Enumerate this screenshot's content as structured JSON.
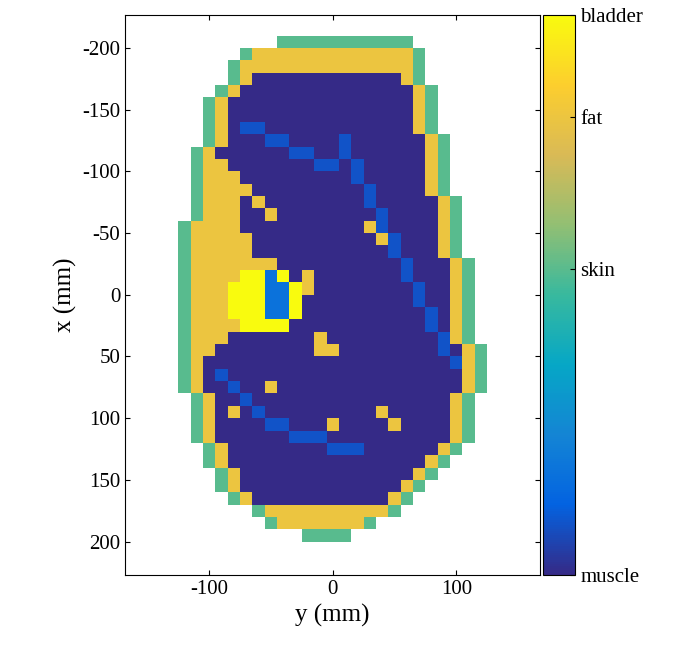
{
  "chart_data": {
    "type": "heatmap",
    "xlabel": "y (mm)",
    "ylabel": "x (mm)",
    "xlim": [
      -168,
      168
    ],
    "ylim": [
      227,
      -227
    ],
    "xticks": [
      -100,
      0,
      100
    ],
    "yticks": [
      -200,
      -150,
      -100,
      -50,
      0,
      50,
      100,
      150,
      200
    ],
    "y_edges": [
      -125,
      -115,
      -105,
      -95,
      -85,
      -75,
      -65,
      -55,
      -45,
      -35,
      -25,
      -15,
      -5,
      5,
      15,
      25,
      35,
      45,
      55,
      65,
      75,
      85,
      95,
      105,
      115,
      125
    ],
    "x_edges": [
      -210,
      -200,
      -190,
      -180,
      -170,
      -160,
      -150,
      -140,
      -130,
      -120,
      -110,
      -100,
      -90,
      -80,
      -70,
      -60,
      -50,
      -40,
      -30,
      -20,
      -10,
      0,
      10,
      20,
      30,
      40,
      50,
      60,
      70,
      80,
      90,
      100,
      110,
      120,
      130,
      140,
      150,
      160,
      170,
      180,
      190,
      200
    ],
    "color_range": [
      0,
      11
    ],
    "color_ticks": [
      {
        "value": 0,
        "label": "muscle"
      },
      {
        "value": 6,
        "label": "skin"
      },
      {
        "value": 9,
        "label": "fat"
      },
      {
        "value": 11,
        "label": "bladder"
      }
    ],
    "cells": [
      [
        null,
        null,
        null,
        null,
        null,
        null,
        null,
        null,
        6,
        6,
        6,
        6,
        6,
        6,
        6,
        6,
        6,
        6,
        6,
        null,
        null,
        null,
        null,
        null,
        null
      ],
      [
        null,
        null,
        null,
        null,
        null,
        6,
        9,
        9,
        9,
        9,
        9,
        9,
        9,
        9,
        9,
        9,
        9,
        9,
        9,
        6,
        null,
        null,
        null,
        null,
        null
      ],
      [
        null,
        null,
        null,
        null,
        6,
        9,
        9,
        9,
        9,
        9,
        9,
        9,
        9,
        9,
        9,
        9,
        9,
        9,
        9,
        6,
        null,
        null,
        null,
        null,
        null
      ],
      [
        null,
        null,
        null,
        null,
        6,
        9,
        0,
        0,
        0,
        0,
        0,
        0,
        0,
        0,
        0,
        0,
        0,
        0,
        9,
        6,
        null,
        null,
        null,
        null,
        null
      ],
      [
        null,
        null,
        null,
        6,
        9,
        0,
        0,
        0,
        0,
        0,
        0,
        0,
        0,
        0,
        0,
        0,
        0,
        0,
        0,
        9,
        6,
        null,
        null,
        null,
        null
      ],
      [
        null,
        null,
        6,
        9,
        0,
        0,
        0,
        0,
        0,
        0,
        0,
        0,
        0,
        0,
        0,
        0,
        0,
        0,
        0,
        9,
        6,
        null,
        null,
        null,
        null
      ],
      [
        null,
        null,
        6,
        9,
        0,
        0,
        0,
        0,
        0,
        0,
        0,
        0,
        0,
        0,
        0,
        0,
        0,
        0,
        0,
        9,
        6,
        null,
        null,
        null,
        null
      ],
      [
        null,
        null,
        6,
        9,
        0,
        1,
        1,
        0,
        0,
        0,
        0,
        0,
        0,
        0,
        0,
        0,
        0,
        0,
        0,
        9,
        6,
        null,
        null,
        null,
        null
      ],
      [
        null,
        null,
        6,
        9,
        0,
        0,
        0,
        1,
        1,
        0,
        0,
        0,
        0,
        1,
        0,
        0,
        0,
        0,
        0,
        0,
        9,
        6,
        null,
        null,
        null
      ],
      [
        null,
        6,
        9,
        0,
        0,
        0,
        0,
        0,
        0,
        1,
        1,
        0,
        0,
        1,
        0,
        0,
        0,
        0,
        0,
        0,
        9,
        6,
        null,
        null,
        null
      ],
      [
        null,
        6,
        9,
        9,
        0,
        0,
        0,
        0,
        0,
        0,
        0,
        1,
        1,
        0,
        1,
        0,
        0,
        0,
        0,
        0,
        9,
        6,
        null,
        null,
        null
      ],
      [
        null,
        6,
        9,
        9,
        9,
        0,
        0,
        0,
        0,
        0,
        0,
        0,
        0,
        0,
        1,
        0,
        0,
        0,
        0,
        0,
        9,
        6,
        null,
        null,
        null
      ],
      [
        null,
        6,
        9,
        9,
        9,
        9,
        0,
        0,
        0,
        0,
        0,
        0,
        0,
        0,
        0,
        1,
        0,
        0,
        0,
        0,
        9,
        6,
        null,
        null,
        null
      ],
      [
        null,
        6,
        9,
        9,
        9,
        0,
        9,
        0,
        0,
        0,
        0,
        0,
        0,
        0,
        0,
        1,
        0,
        0,
        0,
        0,
        0,
        9,
        6,
        null,
        null
      ],
      [
        null,
        6,
        9,
        9,
        9,
        0,
        0,
        9,
        0,
        0,
        0,
        0,
        0,
        0,
        0,
        0,
        1,
        0,
        0,
        0,
        0,
        9,
        6,
        null,
        null
      ],
      [
        6,
        9,
        9,
        9,
        9,
        0,
        0,
        0,
        0,
        0,
        0,
        0,
        0,
        0,
        0,
        9,
        1,
        0,
        0,
        0,
        0,
        9,
        6,
        null,
        null
      ],
      [
        6,
        9,
        9,
        9,
        9,
        9,
        0,
        0,
        0,
        0,
        0,
        0,
        0,
        0,
        0,
        0,
        9,
        1,
        0,
        0,
        0,
        9,
        6,
        null,
        null
      ],
      [
        6,
        9,
        9,
        9,
        9,
        9,
        0,
        0,
        0,
        0,
        0,
        0,
        0,
        0,
        0,
        0,
        0,
        1,
        0,
        0,
        0,
        9,
        6,
        null,
        null
      ],
      [
        6,
        9,
        9,
        9,
        9,
        9,
        9,
        9,
        0,
        0,
        0,
        0,
        0,
        0,
        0,
        0,
        0,
        0,
        1,
        0,
        0,
        0,
        9,
        6,
        null
      ],
      [
        6,
        9,
        9,
        9,
        9,
        11,
        11,
        2,
        11,
        0,
        9,
        0,
        0,
        0,
        0,
        0,
        0,
        0,
        1,
        0,
        0,
        0,
        9,
        6,
        null
      ],
      [
        6,
        9,
        9,
        9,
        11,
        11,
        11,
        2,
        2,
        11,
        9,
        0,
        0,
        0,
        0,
        0,
        0,
        0,
        0,
        1,
        0,
        0,
        9,
        6,
        null
      ],
      [
        6,
        9,
        9,
        9,
        11,
        11,
        11,
        2,
        2,
        11,
        0,
        0,
        0,
        0,
        0,
        0,
        0,
        0,
        0,
        1,
        0,
        0,
        9,
        6,
        null
      ],
      [
        6,
        9,
        9,
        9,
        11,
        11,
        11,
        2,
        2,
        11,
        0,
        0,
        0,
        0,
        0,
        0,
        0,
        0,
        0,
        0,
        1,
        0,
        9,
        6,
        null
      ],
      [
        6,
        9,
        9,
        9,
        9,
        11,
        11,
        11,
        11,
        0,
        0,
        0,
        0,
        0,
        0,
        0,
        0,
        0,
        0,
        0,
        1,
        0,
        9,
        6,
        null
      ],
      [
        6,
        9,
        9,
        9,
        0,
        0,
        0,
        0,
        0,
        0,
        0,
        9,
        0,
        0,
        0,
        0,
        0,
        0,
        0,
        0,
        0,
        1,
        9,
        6,
        null
      ],
      [
        6,
        9,
        9,
        0,
        0,
        0,
        0,
        0,
        0,
        0,
        0,
        9,
        9,
        0,
        0,
        0,
        0,
        0,
        0,
        0,
        0,
        1,
        0,
        9,
        6
      ],
      [
        6,
        9,
        0,
        0,
        0,
        0,
        0,
        0,
        0,
        0,
        0,
        0,
        0,
        0,
        0,
        0,
        0,
        0,
        0,
        0,
        0,
        0,
        1,
        9,
        6
      ],
      [
        6,
        9,
        0,
        1,
        0,
        0,
        0,
        0,
        0,
        0,
        0,
        0,
        0,
        0,
        0,
        0,
        0,
        0,
        0,
        0,
        0,
        0,
        0,
        9,
        6
      ],
      [
        6,
        9,
        0,
        0,
        1,
        0,
        0,
        9,
        0,
        0,
        0,
        0,
        0,
        0,
        0,
        0,
        0,
        0,
        0,
        0,
        0,
        0,
        0,
        9,
        6
      ],
      [
        null,
        6,
        9,
        0,
        0,
        1,
        0,
        0,
        0,
        0,
        0,
        0,
        0,
        0,
        0,
        0,
        0,
        0,
        0,
        0,
        0,
        0,
        9,
        6,
        null
      ],
      [
        null,
        6,
        9,
        0,
        9,
        0,
        1,
        0,
        0,
        0,
        0,
        0,
        0,
        0,
        0,
        0,
        9,
        0,
        0,
        0,
        0,
        0,
        9,
        6,
        null
      ],
      [
        null,
        6,
        9,
        0,
        0,
        0,
        0,
        1,
        1,
        0,
        0,
        0,
        9,
        0,
        0,
        0,
        0,
        9,
        0,
        0,
        0,
        0,
        9,
        6,
        null
      ],
      [
        null,
        6,
        9,
        0,
        0,
        0,
        0,
        0,
        0,
        1,
        1,
        1,
        0,
        0,
        0,
        0,
        0,
        0,
        0,
        0,
        0,
        0,
        9,
        6,
        null
      ],
      [
        null,
        null,
        6,
        9,
        0,
        0,
        0,
        0,
        0,
        0,
        0,
        0,
        1,
        1,
        1,
        0,
        0,
        0,
        0,
        0,
        0,
        9,
        6,
        null,
        null
      ],
      [
        null,
        null,
        6,
        9,
        0,
        0,
        0,
        0,
        0,
        0,
        0,
        0,
        0,
        0,
        0,
        0,
        0,
        0,
        0,
        0,
        9,
        6,
        null,
        null,
        null
      ],
      [
        null,
        null,
        null,
        6,
        9,
        0,
        0,
        0,
        0,
        0,
        0,
        0,
        0,
        0,
        0,
        0,
        0,
        0,
        0,
        9,
        6,
        null,
        null,
        null,
        null
      ],
      [
        null,
        null,
        null,
        6,
        9,
        0,
        0,
        0,
        0,
        0,
        0,
        0,
        0,
        0,
        0,
        0,
        0,
        0,
        9,
        6,
        null,
        null,
        null,
        null,
        null
      ],
      [
        null,
        null,
        null,
        null,
        6,
        9,
        0,
        0,
        0,
        0,
        0,
        0,
        0,
        0,
        0,
        0,
        0,
        9,
        6,
        null,
        null,
        null,
        null,
        null,
        null
      ],
      [
        null,
        null,
        null,
        null,
        null,
        null,
        6,
        9,
        9,
        9,
        9,
        9,
        9,
        9,
        9,
        9,
        9,
        6,
        null,
        null,
        null,
        null,
        null,
        null,
        null
      ],
      [
        null,
        null,
        null,
        null,
        null,
        null,
        null,
        6,
        9,
        9,
        9,
        9,
        9,
        9,
        9,
        6,
        null,
        null,
        null,
        null,
        null,
        null,
        null,
        null,
        null
      ],
      [
        null,
        null,
        null,
        null,
        null,
        null,
        null,
        null,
        null,
        null,
        6,
        6,
        6,
        6,
        null,
        null,
        null,
        null,
        null,
        null,
        null,
        null,
        null,
        null,
        null
      ]
    ]
  }
}
